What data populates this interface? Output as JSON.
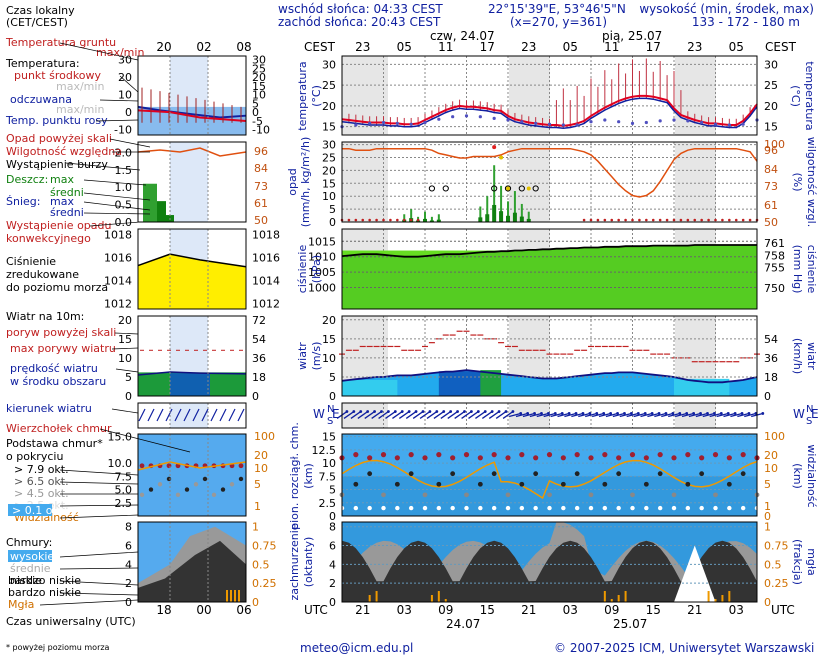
{
  "header": {
    "sunrise": "wschód słońca: 04:33 CEST",
    "sunset": "zachód słońca: 20:43 CEST",
    "coords": "22°15'39\"E, 53°46'5\"N",
    "grid": "(x=270, y=361)",
    "alt_title": "wysokość (min, środek, max)",
    "alt_values": "133 - 172 - 180 m",
    "day1": "czw, 24.07",
    "day2": "pią, 25.07",
    "cest": "CEST",
    "utc": "UTC",
    "date1": "24.07",
    "date2": "25.07"
  },
  "legend": {
    "local_time": "Czas lokalny",
    "local_time2": "(CET/CEST)",
    "ground_temp": "Temperatura gruntu",
    "maxmin": "max/min",
    "temperature": "Temperatura:",
    "mid_point": "punkt środkowy",
    "mid_maxmin": "max/min",
    "felt": "odczuwana",
    "felt_maxmin": "max/min",
    "dew": "Temp. punktu rosy",
    "rain_above": "Opad powyżej skali",
    "humidity": "Wilgotność względna",
    "storm": "Wystąpienie burzy",
    "rain": "Deszcz:",
    "rain_max": "max",
    "rain_mid": "średni",
    "snow": "Śnieg:",
    "snow_max": "max",
    "snow_mid": "średni",
    "conv1": "Wystąpienie opadu",
    "conv2": "konwekcyjnego",
    "pressure1": "Ciśnienie",
    "pressure2": "zredukowane",
    "pressure3": "do poziomu morza",
    "wind_title": "Wiatr na 10m:",
    "gust_above": "poryw powyżej skali",
    "gust_max": "max porywy wiatru",
    "wind_speed1": "prędkość wiatru",
    "wind_speed2": "w środku obszaru",
    "wind_dir": "kierunek wiatru",
    "wind_chill": "Wierzchołek chmur",
    "cloud_base1": "Podstawa chmur*",
    "cloud_base2": "o pokryciu",
    "cb1": "> 7.9 okt.",
    "cb2": "> 6.5 okt.",
    "cb3": "> 4.5 okt.",
    "cb4": "> 2.5 okt.",
    "cb5": "> 0.1 okt.",
    "visibility": "Widzialność",
    "clouds": "Chmury:",
    "high": "wysokie",
    "medium": "średnie",
    "low": "niskie",
    "very_low": "bardzo niskie",
    "fog": "Mgła",
    "utc_time": "Czas uniwersalny (UTC)",
    "footnote": "* powyżej poziomu morza"
  },
  "labels": {
    "temp_l": "temperatura",
    "temp_unit": "(°C)",
    "rain_l1": "opad",
    "rain_l2": "(mm/h, kg/m²/h)",
    "hum_l1": "(%)",
    "hum_l2": "wilgotność wzgl.",
    "pres_l1": "ciśnienie",
    "pres_l2": "(hPa)",
    "pres_r1": "(mm Hg)",
    "pres_r2": "ciśnienie",
    "wind_l1": "wiatr",
    "wind_l2": "(m/s)",
    "wind_r1": "(km/h)",
    "wind_r2": "wiatr",
    "cb_l1": "pion. rozciągł. chm.",
    "cb_l2": "(km)",
    "vis_l1": "(km)",
    "vis_l2": "widzialność",
    "cl_l1": "zachmurzenie",
    "cl_l2": "(oktanty)",
    "fog_r1": "(frakcja)",
    "fog_r2": "mgła",
    "compass_n": "N",
    "compass_w": "W",
    "compass_e": "E",
    "compass_s": "S"
  },
  "footer": {
    "email": "meteo@icm.edu.pl",
    "copyright": "© 2007-2025 ICM, Uniwersytet Warszawski"
  },
  "chart_data": {
    "type": "line",
    "x_hours_utc": [
      18,
      19,
      20,
      21,
      22,
      23,
      0,
      1,
      2,
      3,
      4,
      5,
      6,
      7,
      8,
      9,
      10,
      11,
      12,
      13,
      14,
      15,
      16,
      17,
      18,
      19,
      20,
      21,
      22,
      23,
      0,
      1,
      2,
      3,
      4,
      5,
      6,
      7,
      8,
      9,
      10,
      11,
      12,
      13,
      14,
      15,
      16,
      17,
      18,
      19,
      20,
      21,
      22,
      23,
      0,
      1,
      2,
      3,
      4,
      5,
      6
    ],
    "local_ticks": [
      "23",
      "05",
      "11",
      "17",
      "23",
      "05",
      "11",
      "17",
      "23",
      "05"
    ],
    "utc_ticks": [
      "21",
      "03",
      "09",
      "15",
      "21",
      "03",
      "09",
      "15",
      "21",
      "03"
    ],
    "small_local_ticks": [
      "20",
      "02",
      "08"
    ],
    "small_utc_ticks": [
      "18",
      "00",
      "06"
    ],
    "temperature": {
      "yticks": [
        15,
        20,
        25,
        30
      ],
      "small_yticks": [
        -10,
        -5,
        0,
        5,
        10,
        15,
        20,
        25,
        30
      ],
      "mid": [
        16.8,
        16.6,
        16.4,
        16.2,
        16.0,
        16.0,
        16.0,
        15.8,
        15.8,
        15.6,
        15.6,
        15.8,
        16.6,
        17.4,
        18.2,
        19.0,
        19.6,
        20.0,
        19.8,
        19.8,
        19.6,
        19.4,
        19.0,
        18.8,
        17.6,
        16.8,
        16.4,
        16.0,
        15.8,
        15.6,
        15.4,
        15.4,
        15.2,
        15.4,
        15.8,
        16.4,
        17.6,
        18.6,
        19.6,
        20.4,
        21.2,
        21.8,
        22.2,
        22.4,
        22.4,
        22.2,
        21.8,
        21.4,
        19.4,
        17.8,
        17.2,
        16.6,
        16.2,
        15.8,
        15.8,
        15.6,
        15.4,
        15.4,
        16.4,
        18.2,
        20.4
      ],
      "dew": [
        15.0,
        15.2,
        15.4,
        15.6,
        15.8,
        16.0,
        16.0,
        16.0,
        15.8,
        15.8,
        15.6,
        15.6,
        16.0,
        16.4,
        16.8,
        17.2,
        17.4,
        17.6,
        17.6,
        17.4,
        17.4,
        17.2,
        17.0,
        16.8,
        16.6,
        16.4,
        16.2,
        16.0,
        15.8,
        15.8,
        15.6,
        15.6,
        15.4,
        15.2,
        15.4,
        15.8,
        16.2,
        16.6,
        16.6,
        16.4,
        16.2,
        16.0,
        15.8,
        15.8,
        16.0,
        16.2,
        16.4,
        16.6,
        16.6,
        16.6,
        16.4,
        16.2,
        16.0,
        15.8,
        15.6,
        15.6,
        15.4,
        15.4,
        15.6,
        16.0,
        16.6
      ]
    },
    "precip": {
      "yticks": [
        0,
        5,
        10,
        15,
        20,
        25,
        30
      ],
      "hum_yticks": [
        50,
        61,
        73,
        84,
        96,
        100
      ],
      "humidity": [
        97,
        97,
        96,
        96,
        96,
        97,
        97,
        97,
        97,
        97,
        97,
        97,
        97,
        96,
        94,
        93,
        92,
        91,
        91,
        92,
        92,
        92,
        92,
        93,
        95,
        96,
        97,
        97,
        97,
        97,
        97,
        97,
        97,
        97,
        96,
        95,
        93,
        89,
        84,
        79,
        74,
        70,
        67,
        66,
        67,
        70,
        76,
        83,
        90,
        94,
        96,
        97,
        97,
        97,
        97,
        97,
        97,
        97,
        96,
        95,
        89
      ]
    },
    "pressure": {
      "yticks": [
        1000,
        1005,
        1010,
        1015
      ],
      "mmhg_yticks": [
        750,
        755,
        758,
        761
      ],
      "small_yticks": [
        1012,
        1014,
        1016,
        1018
      ],
      "values": [
        1010.2,
        1010.4,
        1010.6,
        1010.8,
        1010.8,
        1010.8,
        1010.6,
        1010.4,
        1010.2,
        1010.0,
        1010.0,
        1010.0,
        1010.2,
        1010.4,
        1010.6,
        1010.8,
        1010.8,
        1010.8,
        1011.0,
        1011.2,
        1011.4,
        1011.6,
        1011.6,
        1011.8,
        1011.8,
        1012.0,
        1012.0,
        1012.2,
        1012.2,
        1012.4,
        1012.4,
        1012.6,
        1012.6,
        1012.8,
        1012.8,
        1013.0,
        1013.0,
        1013.0,
        1013.2,
        1013.2,
        1013.2,
        1013.4,
        1013.4,
        1013.4,
        1013.4,
        1013.6,
        1013.6,
        1013.6,
        1013.6,
        1013.6,
        1013.6,
        1013.8,
        1013.8,
        1013.8,
        1013.8,
        1013.8,
        1013.8,
        1013.8,
        1013.8,
        1013.8,
        1013.8
      ]
    },
    "wind": {
      "yticks": [
        0,
        5,
        10,
        15,
        20
      ],
      "kmh_yticks": [
        0,
        18,
        36,
        54
      ],
      "speed": [
        4.0,
        4.2,
        4.4,
        4.6,
        4.8,
        5.0,
        5.0,
        5.2,
        5.4,
        5.4,
        5.4,
        5.6,
        5.8,
        6.0,
        6.2,
        6.4,
        6.4,
        6.6,
        6.8,
        6.6,
        6.4,
        6.2,
        6.0,
        5.8,
        5.6,
        5.4,
        5.2,
        5.0,
        4.8,
        4.6,
        4.6,
        4.6,
        4.8,
        5.0,
        5.2,
        5.4,
        5.6,
        5.8,
        6.0,
        6.0,
        6.2,
        6.2,
        6.2,
        6.0,
        5.8,
        5.6,
        5.4,
        5.2,
        5.0,
        4.6,
        4.2,
        4.0,
        3.8,
        3.6,
        3.6,
        3.6,
        3.8,
        4.0,
        4.2,
        4.6,
        5.0
      ],
      "gust": [
        11,
        12,
        12,
        13,
        13,
        13,
        13,
        13,
        13,
        12,
        12,
        12,
        13,
        14,
        15,
        16,
        16,
        17,
        17,
        16,
        16,
        15,
        15,
        14,
        13,
        13,
        12,
        12,
        12,
        12,
        11,
        11,
        11,
        11,
        12,
        12,
        13,
        13,
        13,
        13,
        13,
        13,
        12,
        12,
        12,
        11,
        11,
        11,
        10,
        10,
        10,
        9,
        9,
        9,
        9,
        9,
        9,
        9,
        10,
        10,
        11
      ]
    },
    "cloud": {
      "yticks": [
        0,
        2.5,
        5,
        7.5,
        10,
        12.5,
        15
      ],
      "vis_yticks": [
        0,
        1,
        5,
        10,
        20,
        100
      ]
    },
    "clouds_oktas": {
      "yticks": [
        0,
        2,
        4,
        6,
        8
      ],
      "fog_yticks": [
        0,
        0.25,
        0.5,
        0.75,
        1
      ]
    }
  }
}
